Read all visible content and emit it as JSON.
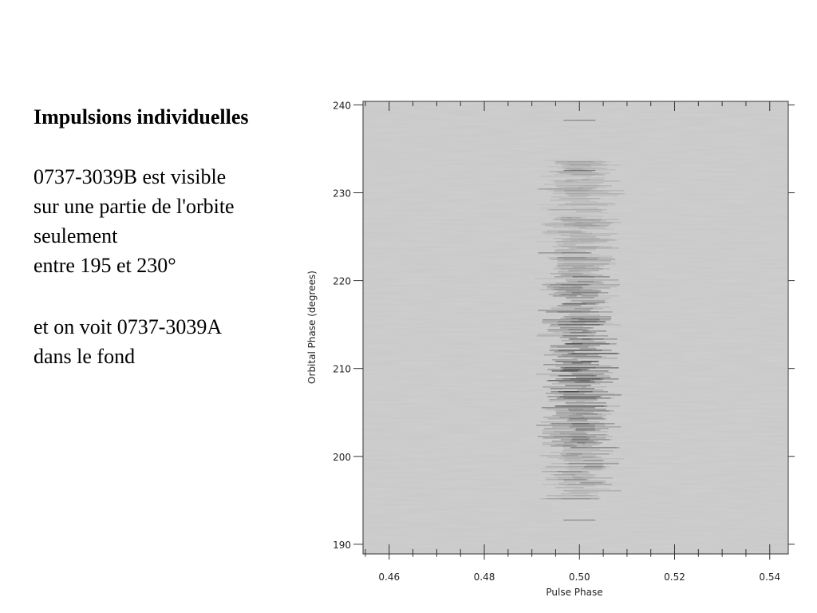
{
  "slide": {
    "title": "Impulsions individuelles",
    "paragraphs": [
      [
        "0737-3039B est visible",
        "sur une partie de l'orbite",
        "seulement",
        "entre 195 et 230°"
      ],
      [
        "et on voit 0737-3039A",
        "dans le fond"
      ]
    ]
  },
  "chart_data": {
    "type": "heatmap",
    "xlabel": "Pulse Phase",
    "ylabel": "Orbital Phase (degrees)",
    "xlim": [
      0.4545,
      0.5439
    ],
    "ylim": [
      188.9,
      240.4
    ],
    "xticks": [
      0.46,
      0.48,
      {
        "value": 0.5,
        "label": "0.50"
      },
      0.52,
      0.54
    ],
    "xminorticks": [
      0.455,
      0.465,
      0.47,
      0.475,
      0.485,
      0.49,
      0.495,
      0.505,
      0.51,
      0.515,
      0.525,
      0.53,
      0.535
    ],
    "yticks": [
      190,
      200,
      210,
      220,
      230,
      240
    ]
  }
}
